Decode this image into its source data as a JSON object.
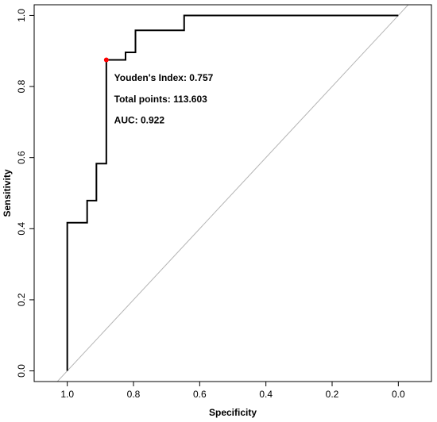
{
  "chart_data": {
    "type": "line",
    "title": "",
    "xlabel": "Specificity",
    "ylabel": "Sensitivity",
    "x_reversed": true,
    "xlim": [
      1.1,
      -0.1
    ],
    "ylim": [
      -0.03,
      1.03
    ],
    "x_ticks": [
      1.0,
      0.8,
      0.6,
      0.4,
      0.2,
      0.0
    ],
    "x_tick_labels": [
      "1.0",
      "0.8",
      "0.6",
      "0.4",
      "0.2",
      "0.0"
    ],
    "y_ticks": [
      0.0,
      0.2,
      0.4,
      0.6,
      0.8,
      1.0
    ],
    "y_tick_labels": [
      "0.0",
      "0.2",
      "0.4",
      "0.6",
      "0.8",
      "1.0"
    ],
    "grid": false,
    "series": [
      {
        "color": "#000000",
        "points": [
          {
            "x": 1.0,
            "y": 0.0
          },
          {
            "x": 1.0,
            "y": 0.417
          },
          {
            "x": 0.94,
            "y": 0.417
          },
          {
            "x": 0.94,
            "y": 0.479
          },
          {
            "x": 0.912,
            "y": 0.479
          },
          {
            "x": 0.912,
            "y": 0.583
          },
          {
            "x": 0.882,
            "y": 0.583
          },
          {
            "x": 0.882,
            "y": 0.875
          },
          {
            "x": 0.824,
            "y": 0.875
          },
          {
            "x": 0.824,
            "y": 0.896
          },
          {
            "x": 0.794,
            "y": 0.896
          },
          {
            "x": 0.794,
            "y": 0.958
          },
          {
            "x": 0.647,
            "y": 0.958
          },
          {
            "x": 0.647,
            "y": 1.0
          },
          {
            "x": 0.0,
            "y": 1.0
          }
        ]
      }
    ],
    "reference_line": {
      "color": "#b4b4b4",
      "from": {
        "x": 1.0,
        "y": 0.0
      },
      "to": {
        "x": 0.0,
        "y": 1.0
      }
    },
    "highlight_point": {
      "x": 0.882,
      "y": 0.875,
      "color": "#ff0000"
    },
    "annotations": [
      {
        "text": "Youden's Index:  0.757",
        "x": 0.88,
        "y": 0.825
      },
      {
        "text": "Total points:  113.603",
        "x": 0.88,
        "y": 0.765
      },
      {
        "text": "AUC:  0.922",
        "x": 0.88,
        "y": 0.705
      }
    ]
  }
}
